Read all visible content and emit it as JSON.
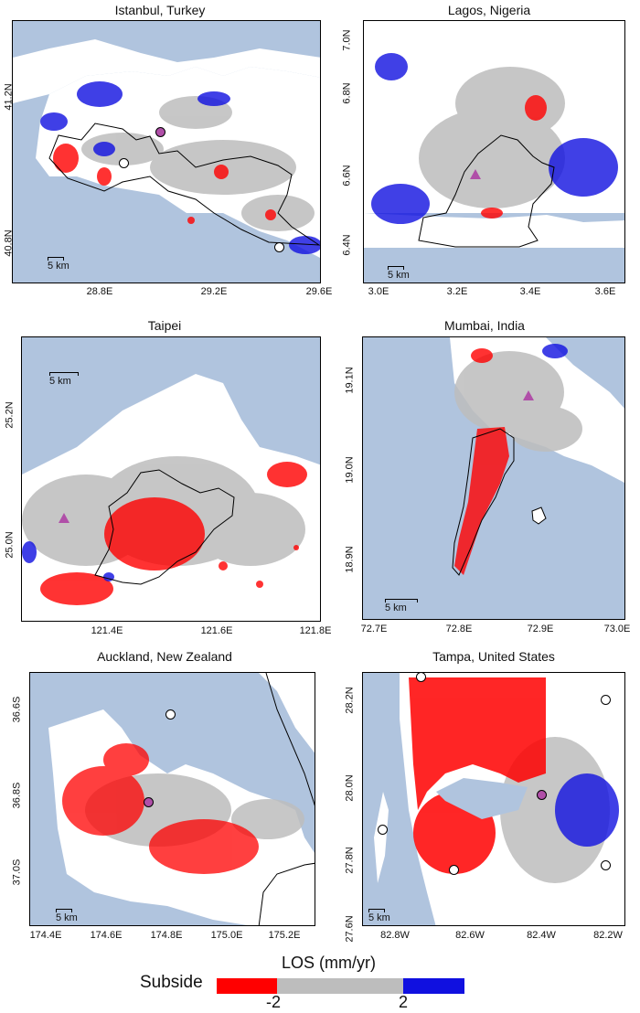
{
  "panels": [
    {
      "id": "istanbul",
      "title": "Istanbul, Turkey",
      "x_ticks": [
        "28.8E",
        "29.2E",
        "29.6E"
      ],
      "y_ticks": [
        "41.2N",
        "40.8N"
      ],
      "scale": "5 km",
      "markers": [
        {
          "type": "circle",
          "color": "#b04fa8"
        },
        {
          "type": "circle",
          "color": "#ffffff"
        },
        {
          "type": "circle",
          "color": "#ffffff"
        }
      ]
    },
    {
      "id": "lagos",
      "title": "Lagos, Nigeria",
      "x_ticks": [
        "3.0E",
        "3.2E",
        "3.4E",
        "3.6E"
      ],
      "y_ticks": [
        "7.0N",
        "6.8N",
        "6.6N",
        "6.4N"
      ],
      "scale": "5 km",
      "markers": [
        {
          "type": "triangle",
          "color": "#b04fa8"
        }
      ]
    },
    {
      "id": "taipei",
      "title": "Taipei",
      "x_ticks": [
        "121.4E",
        "121.6E",
        "121.8E"
      ],
      "y_ticks": [
        "25.2N",
        "25.0N"
      ],
      "scale": "5 km",
      "markers": [
        {
          "type": "triangle",
          "color": "#b04fa8"
        }
      ]
    },
    {
      "id": "mumbai",
      "title": "Mumbai, India",
      "x_ticks": [
        "72.7E",
        "72.8E",
        "72.9E",
        "73.0E"
      ],
      "y_ticks": [
        "19.1N",
        "19.0N",
        "18.9N"
      ],
      "scale": "5 km",
      "markers": [
        {
          "type": "triangle",
          "color": "#b04fa8"
        }
      ]
    },
    {
      "id": "auckland",
      "title": "Auckland, New Zealand",
      "x_ticks": [
        "174.4E",
        "174.6E",
        "174.8E",
        "175.0E",
        "175.2E"
      ],
      "y_ticks": [
        "36.6S",
        "36.8S",
        "37.0S"
      ],
      "scale": "5 km",
      "markers": [
        {
          "type": "circle",
          "color": "#ffffff"
        },
        {
          "type": "circle",
          "color": "#b04fa8"
        }
      ]
    },
    {
      "id": "tampa",
      "title": "Tampa, United States",
      "x_ticks": [
        "82.8W",
        "82.6W",
        "82.4W",
        "82.2W"
      ],
      "y_ticks": [
        "28.2N",
        "28.0N",
        "27.8N",
        "27.6N"
      ],
      "scale": "5 km",
      "markers": [
        {
          "type": "circle",
          "color": "#ffffff"
        },
        {
          "type": "circle",
          "color": "#ffffff"
        },
        {
          "type": "circle",
          "color": "#b04fa8"
        },
        {
          "type": "circle",
          "color": "#ffffff"
        },
        {
          "type": "circle",
          "color": "#ffffff"
        },
        {
          "type": "circle",
          "color": "#ffffff"
        }
      ]
    }
  ],
  "legend": {
    "title": "LOS (mm/yr)",
    "left_label": "Subside",
    "tick_low": "-2",
    "tick_high": "2",
    "colors": {
      "subside": "#ff0000",
      "stable": "#bdbdbd",
      "uplift": "#1010e0",
      "water": "#b0c4de",
      "land": "#ffffff"
    }
  }
}
